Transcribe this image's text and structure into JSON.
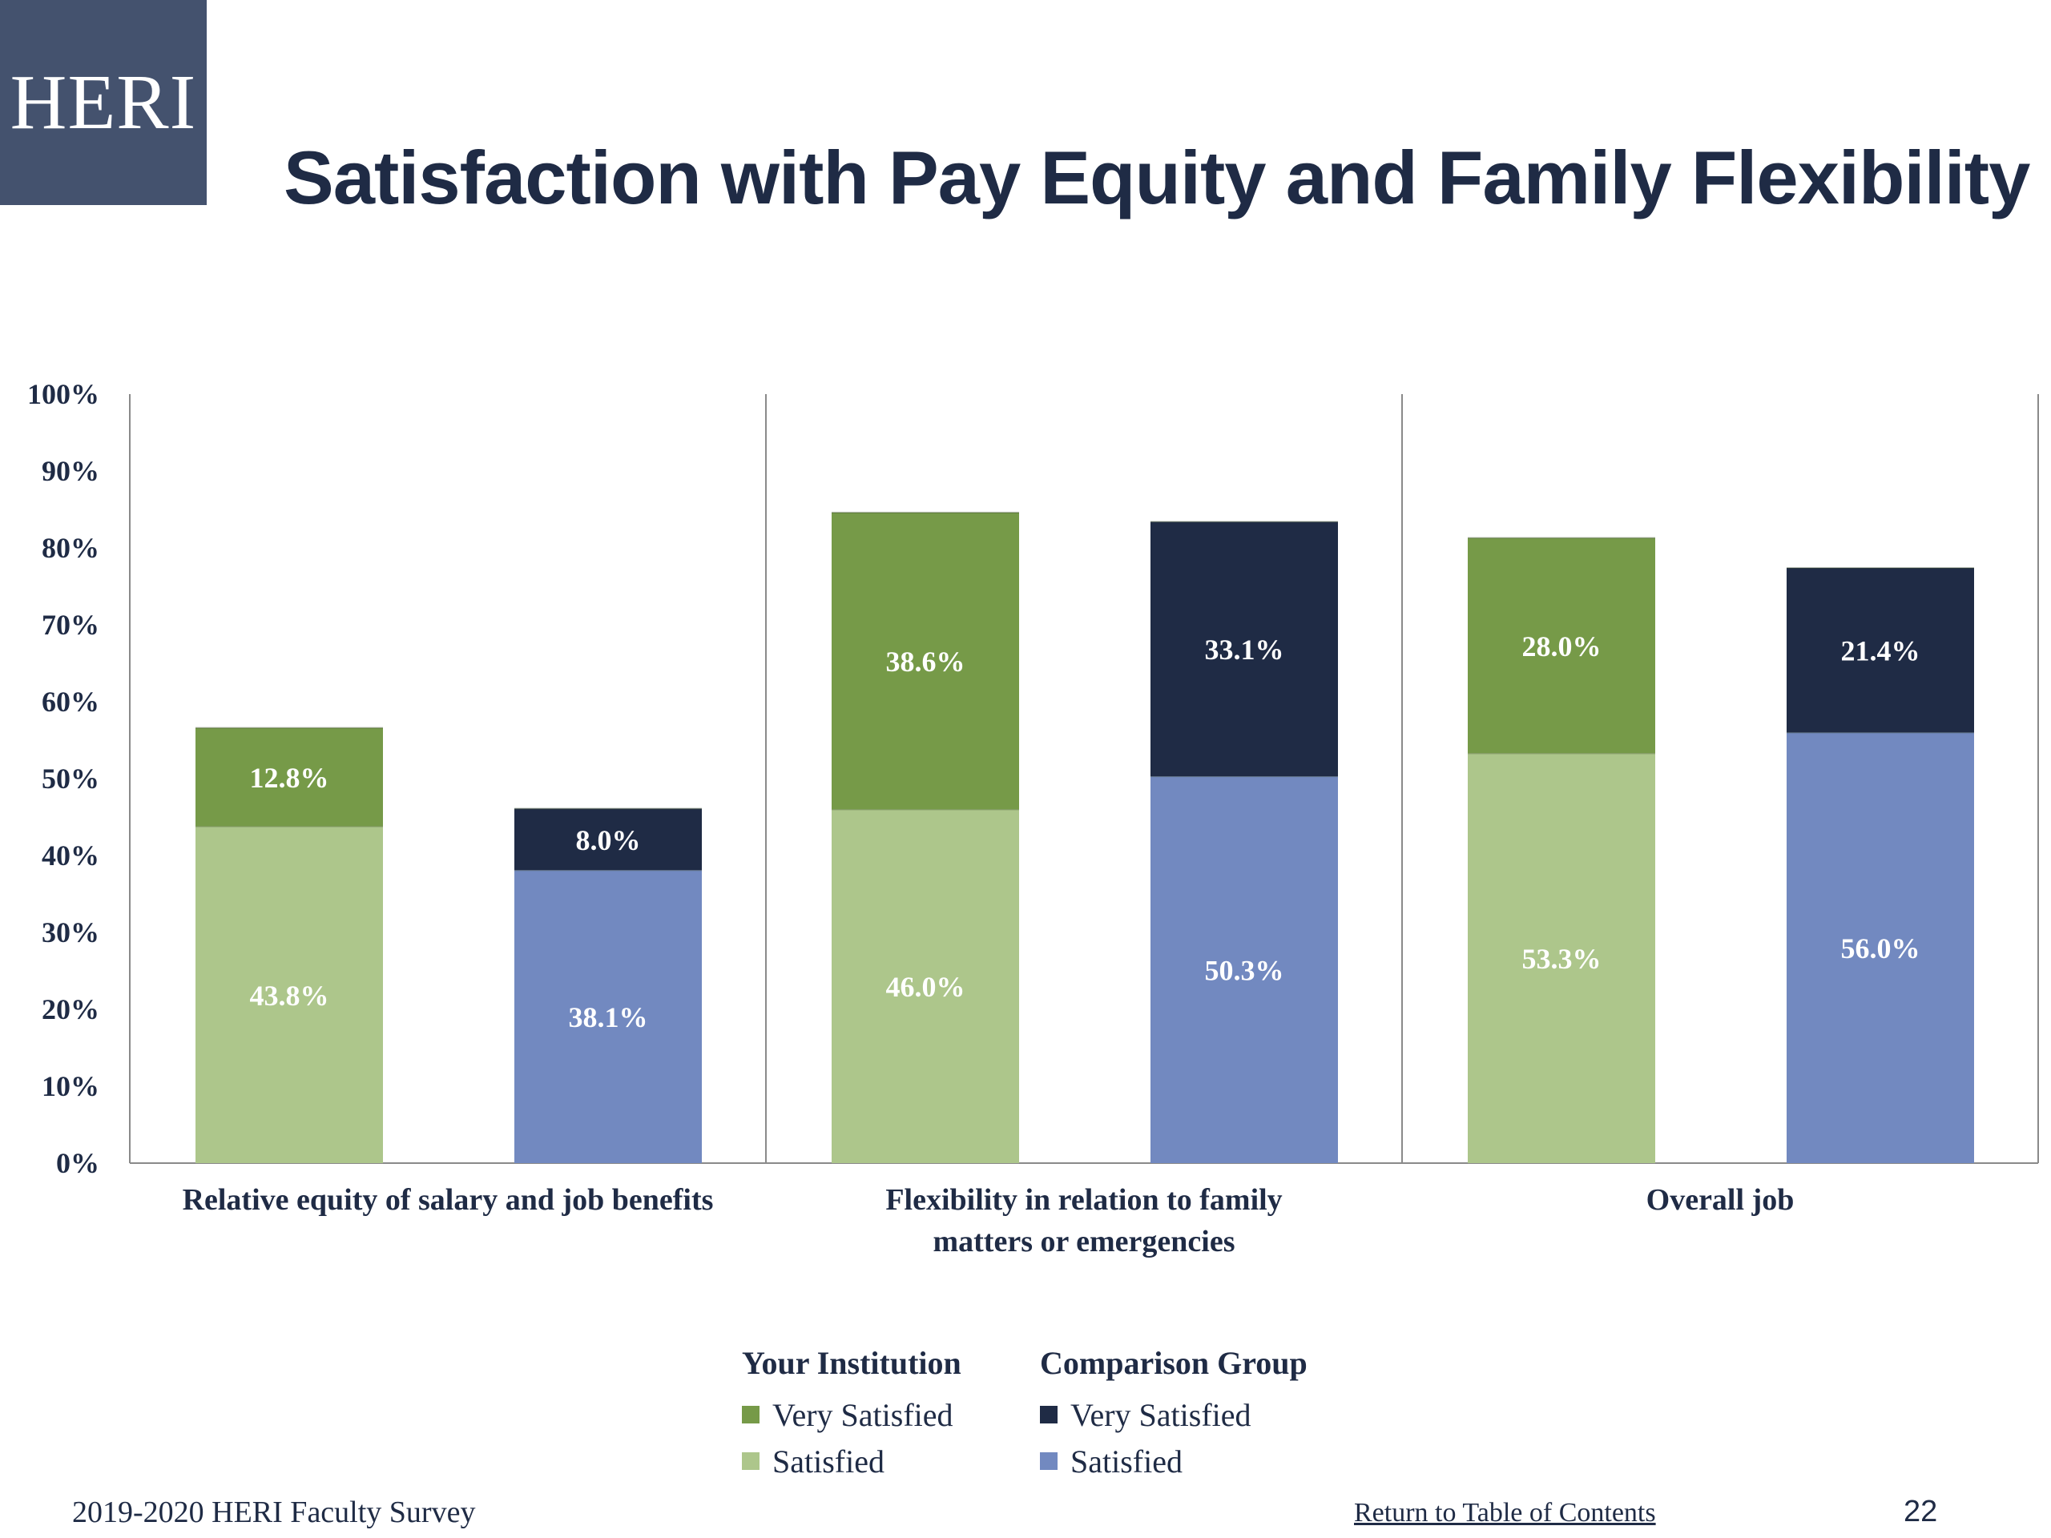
{
  "logo": {
    "text": "HERI"
  },
  "title": "Satisfaction with Pay Equity and Family Flexibility",
  "chart_data": {
    "type": "bar",
    "stacked": true,
    "y_unit": "%",
    "ylim": [
      0,
      100
    ],
    "y_ticks": [
      "0%",
      "10%",
      "20%",
      "30%",
      "40%",
      "50%",
      "60%",
      "70%",
      "80%",
      "90%",
      "100%"
    ],
    "categories": [
      [
        "Relative equity of  salary and job benefits"
      ],
      [
        "Flexibility in relation to family",
        "matters or emergencies"
      ],
      [
        "Overall job"
      ]
    ],
    "groups": [
      "Your Institution",
      "Comparison Group"
    ],
    "series": [
      {
        "name": "Satisfied",
        "group": "Your Institution",
        "color": "#adc68b",
        "values": [
          43.8,
          46.0,
          53.3
        ],
        "labels": [
          "43.8%",
          "46.0%",
          "53.3%"
        ]
      },
      {
        "name": "Very Satisfied",
        "group": "Your Institution",
        "color": "#769a48",
        "values": [
          12.8,
          38.6,
          28.0
        ],
        "labels": [
          "12.8%",
          "38.6%",
          "28.0%"
        ]
      },
      {
        "name": "Satisfied",
        "group": "Comparison Group",
        "color": "#7289c0",
        "values": [
          38.1,
          50.3,
          56.0
        ],
        "labels": [
          "38.1%",
          "50.3%",
          "56.0%"
        ]
      },
      {
        "name": "Very Satisfied",
        "group": "Comparison Group",
        "color": "#1f2b45",
        "values": [
          8.0,
          33.1,
          21.4
        ],
        "labels": [
          "8.0%",
          "33.1%",
          "21.4%"
        ]
      }
    ],
    "legend_position": "bottom-center"
  },
  "legend": {
    "groups": [
      {
        "title": "Your Institution",
        "items": [
          {
            "label": "Very Satisfied",
            "color": "#769a48"
          },
          {
            "label": "Satisfied",
            "color": "#adc68b"
          }
        ]
      },
      {
        "title": "Comparison Group",
        "items": [
          {
            "label": "Very Satisfied",
            "color": "#1f2b45"
          },
          {
            "label": "Satisfied",
            "color": "#7289c0"
          }
        ]
      }
    ]
  },
  "footer": {
    "survey": "2019-2020 HERI Faculty Survey",
    "link": "Return to Table of Contents",
    "page": "22"
  }
}
